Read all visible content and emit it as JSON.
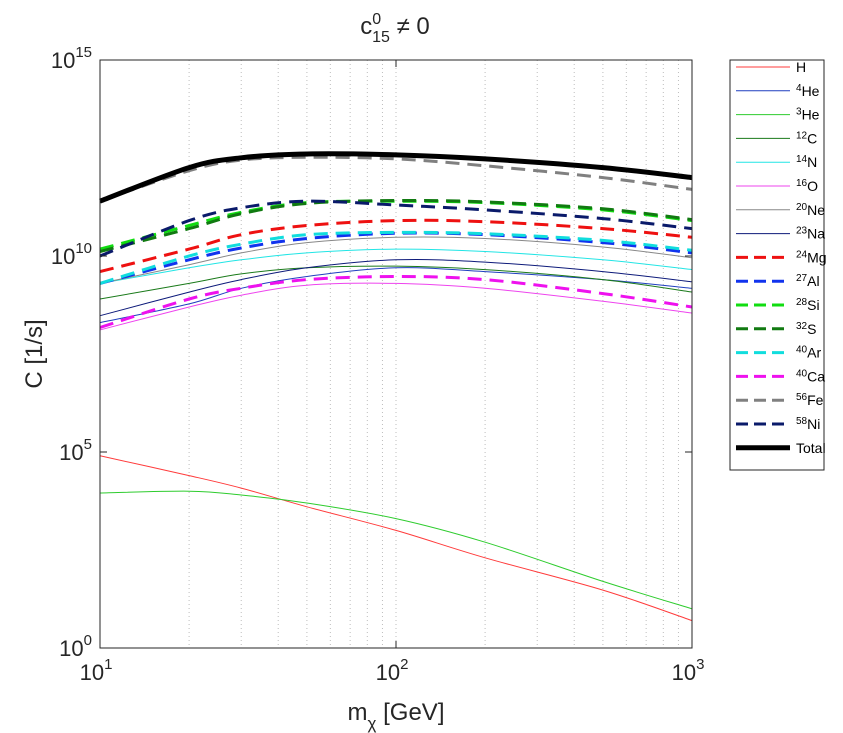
{
  "chart_data": {
    "type": "line",
    "title": {
      "main": "c",
      "sup": "0",
      "sub": "15",
      "suffix": " ≠ 0"
    },
    "xlabel": {
      "main": "m",
      "sub": "χ",
      "suffix": " [GeV]"
    },
    "ylabel": "C [1/s]",
    "xscale": "log",
    "yscale": "log",
    "xlim": [
      10,
      1000
    ],
    "ylim": [
      1,
      1000000000000000.0
    ],
    "grid": "x-only dotted",
    "legend_position": "outside-right",
    "x_ticks": [
      {
        "base": "10",
        "exp": "1",
        "value": 10
      },
      {
        "base": "10",
        "exp": "2",
        "value": 100
      },
      {
        "base": "10",
        "exp": "3",
        "value": 1000
      }
    ],
    "y_ticks": [
      {
        "base": "10",
        "exp": "0",
        "value": 1
      },
      {
        "base": "10",
        "exp": "5",
        "value": 100000
      },
      {
        "base": "10",
        "exp": "10",
        "value": 10000000000
      },
      {
        "base": "10",
        "exp": "15",
        "value": 1000000000000000
      }
    ],
    "x": [
      10,
      20,
      30,
      50,
      100,
      200,
      500,
      1000
    ],
    "series": [
      {
        "name": "H",
        "mass": "",
        "color": "#ff3b3b",
        "style": "solid",
        "width": 1,
        "values": [
          80000.0,
          25000.0,
          12000.0,
          4000.0,
          1000.0,
          200.0,
          30.0,
          5
        ]
      },
      {
        "name": "He",
        "mass": "4",
        "color": "#1f3fbf",
        "style": "solid",
        "width": 1,
        "values": [
          200000000.0,
          600000000.0,
          1500000000.0,
          3000000000.0,
          5000000000.0,
          4000000000.0,
          2500000000.0,
          1500000000.0
        ]
      },
      {
        "name": "He",
        "mass": "3",
        "color": "#2ecc2e",
        "style": "solid",
        "width": 1,
        "values": [
          9000.0,
          10000.0,
          8000.0,
          5000.0,
          2000.0,
          500.0,
          50.0,
          10.0
        ]
      },
      {
        "name": "C",
        "mass": "12",
        "color": "#1a7a1a",
        "style": "solid",
        "width": 1,
        "values": [
          800000000.0,
          2000000000.0,
          3500000000.0,
          5000000000.0,
          5500000000.0,
          4500000000.0,
          2500000000.0,
          1200000000.0
        ]
      },
      {
        "name": "N",
        "mass": "14",
        "color": "#22e5e5",
        "style": "solid",
        "width": 1,
        "values": [
          2000000000.0,
          5000000000.0,
          8000000000.0,
          12000000000.0,
          15000000000.0,
          13000000000.0,
          8000000000.0,
          4500000000.0
        ]
      },
      {
        "name": "O",
        "mass": "16",
        "color": "#ee44ee",
        "style": "solid",
        "width": 1,
        "values": [
          130000000.0,
          500000000.0,
          1000000000.0,
          1800000000.0,
          2000000000.0,
          1500000000.0,
          700000000.0,
          350000000.0
        ]
      },
      {
        "name": "Ne",
        "mass": "20",
        "color": "#888888",
        "style": "solid",
        "width": 1,
        "values": [
          2000000000.0,
          6000000000.0,
          12000000000.0,
          22000000000.0,
          30000000000.0,
          28000000000.0,
          17000000000.0,
          9000000000.0
        ]
      },
      {
        "name": "Na",
        "mass": "23",
        "color": "#0d1a7a",
        "style": "solid",
        "width": 1,
        "values": [
          300000000.0,
          1200000000.0,
          2500000000.0,
          5000000000.0,
          8000000000.0,
          7000000000.0,
          4000000000.0,
          2200000000.0
        ]
      },
      {
        "name": "Mg",
        "mass": "24",
        "color": "#ee1111",
        "style": "dashed",
        "width": 3,
        "values": [
          4000000000.0,
          15000000000.0,
          35000000000.0,
          60000000000.0,
          80000000000.0,
          75000000000.0,
          50000000000.0,
          30000000000.0
        ]
      },
      {
        "name": "Al",
        "mass": "27",
        "color": "#1133ee",
        "style": "dashed",
        "width": 3,
        "values": [
          2000000000.0,
          8000000000.0,
          16000000000.0,
          28000000000.0,
          38000000000.0,
          35000000000.0,
          22000000000.0,
          12000000000.0
        ]
      },
      {
        "name": "Si",
        "mass": "28",
        "color": "#11dd11",
        "style": "dashed",
        "width": 3,
        "values": [
          15000000000.0,
          60000000000.0,
          130000000000.0,
          230000000000.0,
          250000000000.0,
          230000000000.0,
          150000000000.0,
          80000000000.0
        ]
      },
      {
        "name": "S",
        "mass": "32",
        "color": "#117a11",
        "style": "dashed",
        "width": 3,
        "values": [
          13000000000.0,
          50000000000.0,
          120000000000.0,
          220000000000.0,
          260000000000.0,
          240000000000.0,
          160000000000.0,
          85000000000.0
        ]
      },
      {
        "name": "Ar",
        "mass": "40",
        "color": "#11dddd",
        "style": "dashed",
        "width": 3,
        "values": [
          2000000000.0,
          10000000000.0,
          20000000000.0,
          35000000000.0,
          40000000000.0,
          37000000000.0,
          25000000000.0,
          14000000000.0
        ]
      },
      {
        "name": "Ca",
        "mass": "40",
        "color": "#ee11ee",
        "style": "dashed",
        "width": 3,
        "values": [
          150000000.0,
          800000000.0,
          1500000000.0,
          2500000000.0,
          3000000000.0,
          2500000000.0,
          1100000000.0,
          500000000.0
        ]
      },
      {
        "name": "Fe",
        "mass": "56",
        "color": "#808080",
        "style": "dashed",
        "width": 3,
        "values": [
          250000000000.0,
          1500000000000.0,
          2800000000000.0,
          3300000000000.0,
          3000000000000.0,
          2000000000000.0,
          1000000000000.0,
          500000000000.0
        ]
      },
      {
        "name": "Ni",
        "mass": "58",
        "color": "#0a1a6a",
        "style": "dashed",
        "width": 3,
        "values": [
          10000000000.0,
          80000000000.0,
          170000000000.0,
          250000000000.0,
          200000000000.0,
          150000000000.0,
          90000000000.0,
          50000000000.0
        ]
      },
      {
        "name": "Total",
        "mass": "",
        "color": "#000000",
        "style": "solid",
        "width": 5,
        "values": [
          250000000000.0,
          1800000000000.0,
          3200000000000.0,
          4000000000000.0,
          3800000000000.0,
          3000000000000.0,
          1800000000000.0,
          1000000000000.0
        ]
      }
    ]
  }
}
